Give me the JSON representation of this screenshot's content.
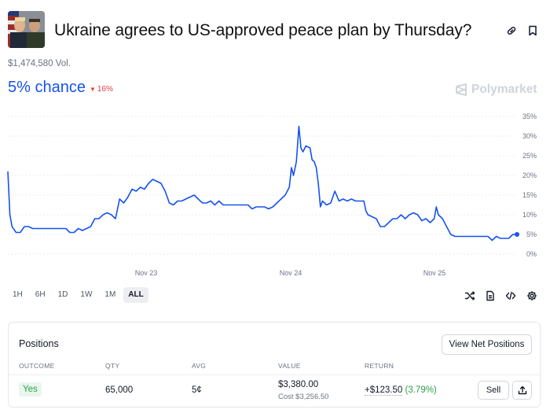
{
  "market": {
    "title": "Ukraine agrees to US-approved peace plan by Thursday?",
    "volume": "$1,474,580 Vol.",
    "chance": "5% chance",
    "change": "16%",
    "brand": "Polymarket"
  },
  "chart_data": {
    "type": "line",
    "x_ticks": [
      "Nov 23",
      "Nov 24",
      "Nov 25"
    ],
    "y_ticks": [
      "35%",
      "30%",
      "25%",
      "20%",
      "15%",
      "10%",
      "5%",
      "0%"
    ],
    "ylim": [
      0,
      35
    ],
    "grid": true,
    "series": [
      {
        "color": "#1652f0",
        "points": [
          [
            0,
            21
          ],
          [
            0.5,
            10
          ],
          [
            1,
            7
          ],
          [
            2,
            5.5
          ],
          [
            3,
            5.5
          ],
          [
            4,
            7
          ],
          [
            5,
            7
          ],
          [
            6,
            6.5
          ],
          [
            8,
            6.5
          ],
          [
            10,
            6.5
          ],
          [
            12,
            6.5
          ],
          [
            14,
            6.5
          ],
          [
            15,
            5.5
          ],
          [
            16,
            5.5
          ],
          [
            17,
            6.5
          ],
          [
            18,
            6
          ],
          [
            20,
            7
          ],
          [
            21,
            9
          ],
          [
            22,
            9
          ],
          [
            23,
            10
          ],
          [
            24,
            10.5
          ],
          [
            25,
            10
          ],
          [
            26,
            9
          ],
          [
            27,
            14
          ],
          [
            28,
            13
          ],
          [
            29,
            14.5
          ],
          [
            30,
            16.5
          ],
          [
            31,
            16
          ],
          [
            32,
            17
          ],
          [
            33,
            16.5
          ],
          [
            34,
            18
          ],
          [
            35,
            19
          ],
          [
            36,
            18.5
          ],
          [
            37,
            18
          ],
          [
            38,
            16
          ],
          [
            39,
            13
          ],
          [
            40,
            12.5
          ],
          [
            41,
            13.5
          ],
          [
            42,
            13.5
          ],
          [
            43,
            14
          ],
          [
            44,
            14.5
          ],
          [
            45,
            15
          ],
          [
            46,
            14
          ],
          [
            47,
            13
          ],
          [
            48,
            13
          ],
          [
            49,
            13.5
          ],
          [
            50,
            12.5
          ],
          [
            51,
            13.5
          ],
          [
            52,
            12.5
          ],
          [
            53,
            12.5
          ],
          [
            56,
            12.5
          ],
          [
            58,
            12.5
          ],
          [
            59,
            11.5
          ],
          [
            60,
            12
          ],
          [
            62,
            12
          ],
          [
            63,
            11.5
          ],
          [
            64,
            12
          ],
          [
            65,
            13
          ],
          [
            66,
            14
          ],
          [
            67,
            15
          ],
          [
            68,
            17
          ],
          [
            68.5,
            22
          ],
          [
            69,
            20
          ],
          [
            69.7,
            23.5
          ],
          [
            70.3,
            32.5
          ],
          [
            70.8,
            27
          ],
          [
            71.3,
            26
          ],
          [
            72,
            27.5
          ],
          [
            73,
            27
          ],
          [
            73.5,
            24
          ],
          [
            74,
            23.5
          ],
          [
            74.5,
            22
          ],
          [
            75,
            18
          ],
          [
            75.5,
            12
          ],
          [
            76,
            13.5
          ],
          [
            77,
            12.5
          ],
          [
            78,
            13
          ],
          [
            79,
            16
          ],
          [
            80,
            13.5
          ],
          [
            81,
            14
          ],
          [
            82,
            13.5
          ],
          [
            83,
            14
          ],
          [
            84,
            13.5
          ],
          [
            85,
            13.5
          ],
          [
            86,
            13.5
          ],
          [
            86.5,
            11
          ],
          [
            87,
            10
          ],
          [
            88,
            9.5
          ],
          [
            89,
            9
          ],
          [
            90,
            7
          ],
          [
            91,
            7
          ],
          [
            92,
            8
          ],
          [
            93,
            9
          ],
          [
            94,
            9
          ],
          [
            95,
            10
          ],
          [
            96,
            9
          ],
          [
            97,
            10
          ],
          [
            98,
            10.5
          ],
          [
            99,
            10
          ],
          [
            100,
            8.5
          ],
          [
            101,
            9
          ],
          [
            102,
            8
          ],
          [
            103,
            9
          ],
          [
            103.5,
            12
          ],
          [
            104,
            10
          ],
          [
            105,
            9
          ],
          [
            106,
            7
          ],
          [
            107,
            5
          ],
          [
            108,
            4.5
          ],
          [
            110,
            4.5
          ],
          [
            112,
            4.5
          ],
          [
            114,
            4.5
          ],
          [
            116,
            4.5
          ],
          [
            117,
            3.5
          ],
          [
            118,
            4.5
          ],
          [
            119,
            4
          ],
          [
            120,
            4
          ],
          [
            121,
            4
          ],
          [
            122,
            5
          ],
          [
            123,
            5
          ]
        ]
      }
    ]
  },
  "ranges": [
    "1H",
    "6H",
    "1D",
    "1W",
    "1M",
    "ALL"
  ],
  "active_range": "ALL",
  "positions": {
    "title": "Positions",
    "view_net_label": "View Net Positions",
    "headers": [
      "OUTCOME",
      "QTY",
      "AVG",
      "VALUE",
      "RETURN"
    ],
    "row": {
      "outcome": "Yes",
      "qty": "65,000",
      "avg": "5¢",
      "value": "$3,380.00",
      "cost": "Cost $3,256.50",
      "return_amount": "+$123.50",
      "return_pct": "(3.79%)",
      "sell_label": "Sell"
    }
  },
  "icons": [
    "link-icon",
    "bookmark-icon",
    "shuffle-icon",
    "document-icon",
    "code-icon",
    "gear-icon",
    "share-icon",
    "polymarket-logo-icon"
  ],
  "colors": {
    "accent": "#1652f0",
    "negative": "#e23d3d",
    "positive": "#2d9d4a"
  }
}
